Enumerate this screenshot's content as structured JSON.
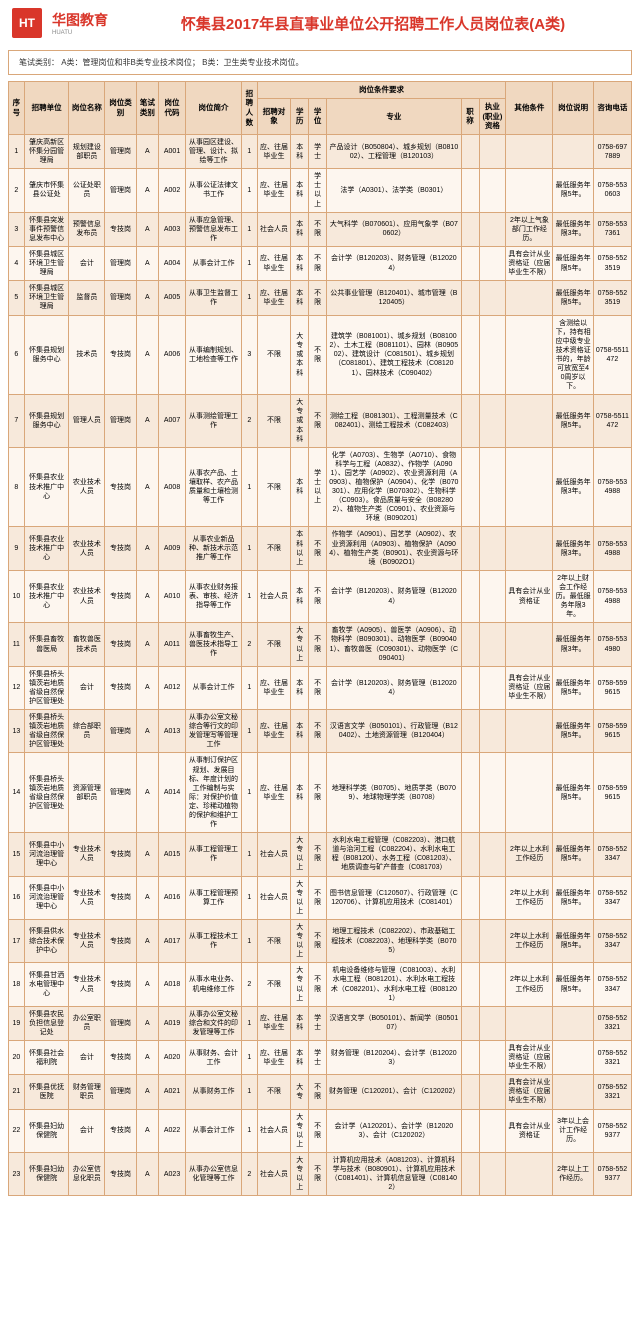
{
  "brand": {
    "logoText": "HT",
    "name": "华图教育",
    "sub": "HUATU"
  },
  "title": "怀集县2017年县直事业单位公开招聘工作人员岗位表(A类)",
  "noteBar": "笔试类别：  A类：管理岗位和非B类专业技术岗位；    B类：卫生类专业技术岗位。",
  "headers": {
    "top": [
      "序号",
      "招聘单位",
      "岗位名称",
      "岗位类别",
      "笔试类别",
      "岗位代码",
      "岗位简介",
      "招聘人数",
      "岗位条件要求",
      "其他条件",
      "岗位说明",
      "咨询电话"
    ],
    "sub": [
      "招聘对象",
      "学历",
      "学位",
      "专业",
      "职称",
      "执业(职业)资格"
    ]
  },
  "rows": [
    {
      "idx": "1",
      "unit": "肇庆高新区怀集分园管理局",
      "pos": "规划建设部职员",
      "catA": "管理岗",
      "catB": "A",
      "code": "A001",
      "brief": "从事园区建设、管理、设计、拟绘等工作",
      "num": "1",
      "obj": "应、往届毕业生",
      "xl": "本科",
      "xw": "学士",
      "major": "产品设计（B050804）、城乡规划（B081002）、工程管理（B120103）",
      "zc": "",
      "zy": "",
      "other": "",
      "desc": "",
      "tel": "0758-6977889"
    },
    {
      "idx": "2",
      "unit": "肇庆市怀集县公证处",
      "pos": "公证处职员",
      "catA": "管理岗",
      "catB": "A",
      "code": "A002",
      "brief": "从事公证法律文书工作",
      "num": "1",
      "obj": "应、往届毕业生",
      "xl": "本科",
      "xw": "学士以上",
      "major": "法学（A0301）、法学类（B0301）",
      "zc": "",
      "zy": "",
      "other": "",
      "desc": "最低服务年限5年。",
      "tel": "0758-5530603"
    },
    {
      "idx": "3",
      "unit": "怀集县突发事件预警信息发布中心",
      "pos": "预警信息发布员",
      "catA": "专技岗",
      "catB": "A",
      "code": "A003",
      "brief": "从事应急管理、预警信息发布工作",
      "num": "1",
      "obj": "社会人员",
      "xl": "本科",
      "xw": "不限",
      "major": "大气科学（B070601）、应用气象学（B070602）",
      "zc": "",
      "zy": "",
      "other": "2年以上气象部门工作经历。",
      "desc": "最低服务年限3年。",
      "tel": "0758-5537361"
    },
    {
      "idx": "4",
      "unit": "怀集县城区环境卫生管理局",
      "pos": "会计",
      "catA": "管理岗",
      "catB": "A",
      "code": "A004",
      "brief": "从事会计工作",
      "num": "1",
      "obj": "应、往届毕业生",
      "xl": "本科",
      "xw": "不限",
      "major": "会计学（B120203）、财务管理（B120204）",
      "zc": "",
      "zy": "",
      "other": "具有会计从业资格证（应届毕业生不限）",
      "desc": "最低服务年限5年。",
      "tel": "0758-5523519"
    },
    {
      "idx": "5",
      "unit": "怀集县城区环境卫生管理局",
      "pos": "监督员",
      "catA": "管理岗",
      "catB": "A",
      "code": "A005",
      "brief": "从事卫生监督工作",
      "num": "1",
      "obj": "应、往届毕业生",
      "xl": "本科",
      "xw": "不限",
      "major": "公共事业管理（B120401）、城市管理（B120405）",
      "zc": "",
      "zy": "",
      "other": "",
      "desc": "最低服务年限5年。",
      "tel": "0758-5523519"
    },
    {
      "idx": "6",
      "unit": "怀集县规划服务中心",
      "pos": "技术员",
      "catA": "专技岗",
      "catB": "A",
      "code": "A006",
      "brief": "从事编制规划、工地检查等工作",
      "num": "3",
      "obj": "不限",
      "xl": "大专或本科",
      "xw": "不限",
      "major": "建筑学（B081001）、城乡规划（B081002）、土木工程（B081101）、园林（B090502）、建筑设计（C081501）、城乡规划（C081801）、建筑工程技术（C081201）、园林技术（C090402）",
      "zc": "",
      "zy": "",
      "other": "",
      "desc": "含测绘以下，持有相应中级专业技术资格证书的，年龄可放宽至40周岁以下。",
      "tel": "0758-5511472"
    },
    {
      "idx": "7",
      "unit": "怀集县规划服务中心",
      "pos": "管理人员",
      "catA": "管理岗",
      "catB": "A",
      "code": "A007",
      "brief": "从事测绘管理工作",
      "num": "2",
      "obj": "不限",
      "xl": "大专或本科",
      "xw": "不限",
      "major": "测绘工程（B081301）、工程测量技术（C082401）、测绘工程技术（C082403）",
      "zc": "",
      "zy": "",
      "other": "",
      "desc": "最低服务年限5年。",
      "tel": "0758-5511472"
    },
    {
      "idx": "8",
      "unit": "怀集县农业技术推广中心",
      "pos": "农业技术人员",
      "catA": "专技岗",
      "catB": "A",
      "code": "A008",
      "brief": "从事农产品、土壤取样、农产品质量和土壤检测等工作",
      "num": "1",
      "obj": "不限",
      "xl": "本科",
      "xw": "学士以上",
      "major": "化学（A0703）、生物学（A0710）、食物科学与工程（A0832）、作物学（A0901）、园艺学（A0902）、农业资源利用（A0903）、植物保护（A0904）、化学（B070301）、应用化学（B070302）、生物科学（C0903）。食品质量与安全（B082802）、植物生产类（C0901）、农业资源与环境（B090201）",
      "zc": "",
      "zy": "",
      "other": "",
      "desc": "最低服务年限3年。",
      "tel": "0758-5534988"
    },
    {
      "idx": "9",
      "unit": "怀集县农业技术推广中心",
      "pos": "农业技术人员",
      "catA": "专技岗",
      "catB": "A",
      "code": "A009",
      "brief": "从事农业新品种、新技术示范推广等工作",
      "num": "1",
      "obj": "不限",
      "xl": "本科以上",
      "xw": "不限",
      "major": "作物学（A0901）、园艺学（A0902）、农业资源利用（A0903）、植物保护（A0904）、植物生产类（B0901）、农业资源与环境（B0902O1）",
      "zc": "",
      "zy": "",
      "other": "",
      "desc": "最低服务年限3年。",
      "tel": "0758-5534988"
    },
    {
      "idx": "10",
      "unit": "怀集县农业技术推广中心",
      "pos": "农业技术人员",
      "catA": "专技岗",
      "catB": "A",
      "code": "A010",
      "brief": "从事农业财务报表、审核、经济指导等工作",
      "num": "1",
      "obj": "社会人员",
      "xl": "本科",
      "xw": "不限",
      "major": "会计学（B120203）、财务管理（B120204）",
      "zc": "",
      "zy": "",
      "other": "具有会计从业资格证",
      "desc": "2年以上财会工作经历。最低服务年限3年。",
      "tel": "0758-5534988"
    },
    {
      "idx": "11",
      "unit": "怀集县畜牧兽医局",
      "pos": "畜牧兽医技术员",
      "catA": "专技岗",
      "catB": "A",
      "code": "A011",
      "brief": "从事畜牧生产、兽医技术指导工作",
      "num": "2",
      "obj": "不限",
      "xl": "大专以上",
      "xw": "不限",
      "major": "畜牧学（A0905）、兽医学（A0906）、动物科学（B090301）、动物医学（B090401）、畜牧兽医（C090301）、动物医学（C090401）",
      "zc": "",
      "zy": "",
      "other": "",
      "desc": "最低服务年限3年。",
      "tel": "0758-5534980"
    },
    {
      "idx": "12",
      "unit": "怀集县桥头镇茨岩地质省级自然保护区管理处",
      "pos": "会计",
      "catA": "专技岗",
      "catB": "A",
      "code": "A012",
      "brief": "从事会计工作",
      "num": "1",
      "obj": "应、往届毕业生",
      "xl": "本科",
      "xw": "不限",
      "major": "会计学（B120203）、财务管理（B120204）",
      "zc": "",
      "zy": "",
      "other": "具有会计从业资格证（应届毕业生不限）",
      "desc": "最低服务年限5年。",
      "tel": "0758-5599615"
    },
    {
      "idx": "13",
      "unit": "怀集县桥头镇茨岩地质省级自然保护区管理处",
      "pos": "综合部职员",
      "catA": "管理岗",
      "catB": "A",
      "code": "A013",
      "brief": "从事办公室文秘综合等行文的印发管理写等管理工作",
      "num": "1",
      "obj": "应、往届毕业生",
      "xl": "本科",
      "xw": "不限",
      "major": "汉语言文学（B050101）、行政管理（B120402）、土地资源管理（B120404）",
      "zc": "",
      "zy": "",
      "other": "",
      "desc": "最低服务年限5年。",
      "tel": "0758-5599615"
    },
    {
      "idx": "14",
      "unit": "怀集县桥头镇茨岩地质省级自然保护区管理处",
      "pos": "资源管理部职员",
      "catA": "管理岗",
      "catB": "A",
      "code": "A014",
      "brief": "从事制订保护区规划、发展目标、年度计划的工作编制与实际：对保护价值定、珍稀动植物的保护和维护工作",
      "num": "1",
      "obj": "应、往届毕业生",
      "xl": "本科",
      "xw": "不限",
      "major": "地理科学类（B0705）、地质学类（B0709）、地球物理学类（B0708）",
      "zc": "",
      "zy": "",
      "other": "",
      "desc": "最低服务年限5年。",
      "tel": "0758-5599615"
    },
    {
      "idx": "15",
      "unit": "怀集县中小河流治理管理中心",
      "pos": "专业技术人员",
      "catA": "专技岗",
      "catB": "A",
      "code": "A015",
      "brief": "从事工程管理工作",
      "num": "1",
      "obj": "社会人员",
      "xl": "大专以上",
      "xw": "不限",
      "major": "水利水电工程管理（C082203）、港口航道与治河工程（C082204）、水利水电工程（B08120l）、水务工程（C081203）、地质调查与矿产普查（C081703）",
      "zc": "",
      "zy": "",
      "other": "2年以上水利工作经历",
      "desc": "最低服务年限5年。",
      "tel": "0758-5523347"
    },
    {
      "idx": "16",
      "unit": "怀集县中小河流治理管理中心",
      "pos": "专业技术人员",
      "catA": "专技岗",
      "catB": "A",
      "code": "A016",
      "brief": "从事工程管理预算工作",
      "num": "1",
      "obj": "社会人员",
      "xl": "大专以上",
      "xw": "不限",
      "major": "图书信息管理（C120507）、行政管理（C120706）、计算机应用技术（C081401）",
      "zc": "",
      "zy": "",
      "other": "2年以上水利工作经历",
      "desc": "最低服务年限5年。",
      "tel": "0758-5523347"
    },
    {
      "idx": "17",
      "unit": "怀集县供水综合技术保护中心",
      "pos": "专业技术人员",
      "catA": "专技岗",
      "catB": "A",
      "code": "A017",
      "brief": "从事工程技术工作",
      "num": "1",
      "obj": "不限",
      "xl": "大专以上",
      "xw": "不限",
      "major": "地理工程技术（C082202）、市政基础工程技术（C082203）、地理科学类（B0705）",
      "zc": "",
      "zy": "",
      "other": "2年以上水利工作经历",
      "desc": "最低服务年限5年。",
      "tel": "0758-5523347"
    },
    {
      "idx": "18",
      "unit": "怀集县甘洒水电管理中心",
      "pos": "专业技术人员",
      "catA": "专技岗",
      "catB": "A",
      "code": "A018",
      "brief": "从事水电业务、机电维修工作",
      "num": "2",
      "obj": "不限",
      "xl": "大专以上",
      "xw": "不限",
      "major": "机电设备维修与管理（C081003）、水利水电工程（B081201）、水利水电工程技术（C082201）、水利水电工程（B081201）",
      "zc": "",
      "zy": "",
      "other": "2年以上水利工作经历",
      "desc": "最低服务年限5年。",
      "tel": "0758-5523347"
    },
    {
      "idx": "19",
      "unit": "怀集县农民负担信息登记处",
      "pos": "办公室职员",
      "catA": "管理岗",
      "catB": "A",
      "code": "A019",
      "brief": "从事办公室文秘综合和文件的印发管理等工作",
      "num": "1",
      "obj": "应、往届毕业生",
      "xl": "本科",
      "xw": "学士",
      "major": "汉语言文学（B050101）、新闻学（B050107）",
      "zc": "",
      "zy": "",
      "other": "",
      "desc": "",
      "tel": "0758-5523321"
    },
    {
      "idx": "20",
      "unit": "怀集县社会褔利院",
      "pos": "会计",
      "catA": "专技岗",
      "catB": "A",
      "code": "A020",
      "brief": "从事财务、会计工作",
      "num": "1",
      "obj": "应、往届毕业生",
      "xl": "本科",
      "xw": "学士",
      "major": "财务管理（B120204）、会计学（B120203）",
      "zc": "",
      "zy": "",
      "other": "具有会计从业资格证（应届毕业生不限）",
      "desc": "",
      "tel": "0758-5523321"
    },
    {
      "idx": "21",
      "unit": "怀集县优抚医院",
      "pos": "财务管理职员",
      "catA": "管理岗",
      "catB": "A",
      "code": "A021",
      "brief": "从事财务工作",
      "num": "1",
      "obj": "不限",
      "xl": "大专",
      "xw": "不限",
      "major": "财务管理（C120201）、会计（C120202）",
      "zc": "",
      "zy": "",
      "other": "具有会计从业资格证（应届毕业生不限）",
      "desc": "",
      "tel": "0758-5523321"
    },
    {
      "idx": "22",
      "unit": "怀集县妇幼保健院",
      "pos": "会计",
      "catA": "专技岗",
      "catB": "A",
      "code": "A022",
      "brief": "从事会计工作",
      "num": "1",
      "obj": "社会人员",
      "xl": "大专以上",
      "xw": "不限",
      "major": "会计学（A120201）、会计学（B120203）、会计（C120202）",
      "zc": "",
      "zy": "",
      "other": "具有会计从业资格证",
      "desc": "3年以上会计工作经历。",
      "tel": "0758-5529377"
    },
    {
      "idx": "23",
      "unit": "怀集县妇幼保健院",
      "pos": "办公室信息化职员",
      "catA": "专技岗",
      "catB": "A",
      "code": "A023",
      "brief": "从事办公室信息化管理等工作",
      "num": "2",
      "obj": "社会人员",
      "xl": "大专以上",
      "xw": "不限",
      "major": "计算机应用技术（A081203）、计算机科学与技术（B080901）、计算机应用技术（C081401）、计算机信息管理（C081402）",
      "zc": "",
      "zy": "",
      "other": "",
      "desc": "2年以上工作经历。",
      "tel": "0758-5529377"
    }
  ]
}
